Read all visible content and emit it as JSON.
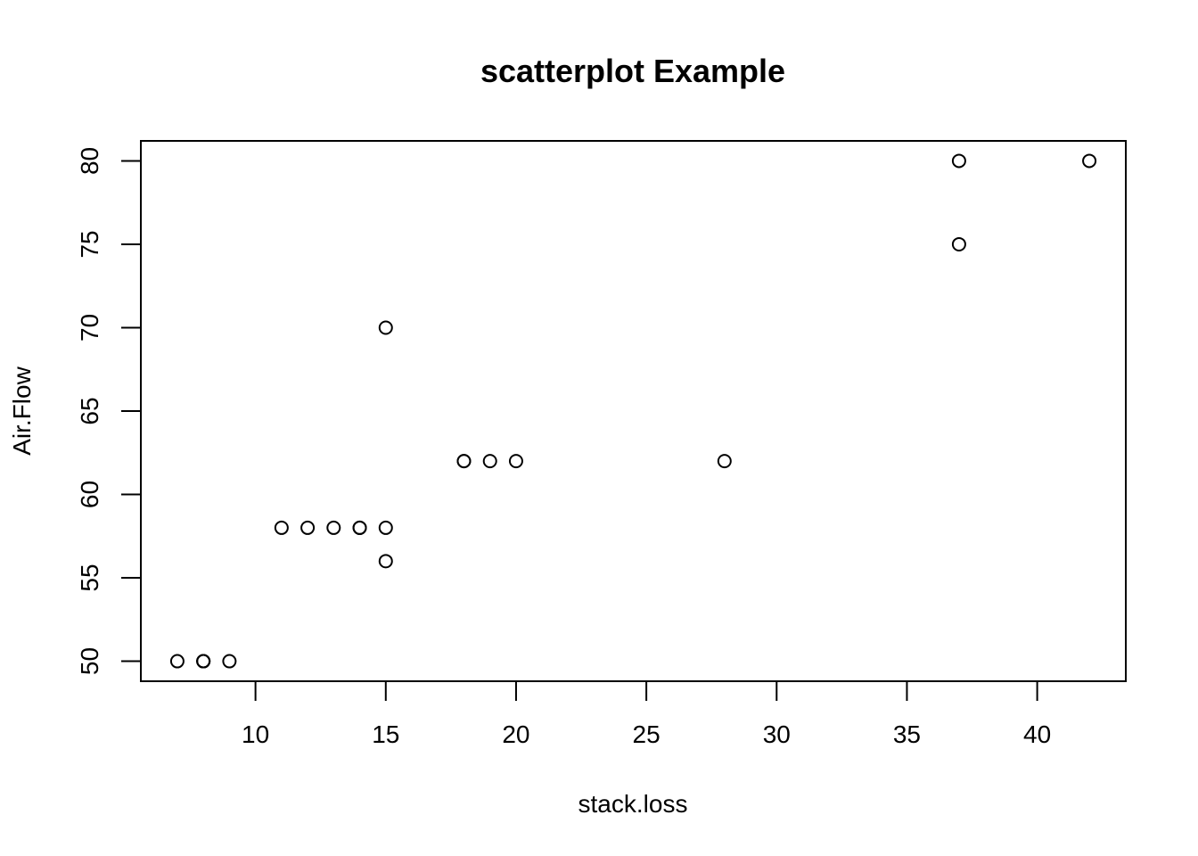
{
  "chart_data": {
    "type": "scatter",
    "title": "scatterplot Example",
    "xlabel": "stack.loss",
    "ylabel": "Air.Flow",
    "xlim": [
      5.6,
      43.4
    ],
    "ylim": [
      48.8,
      81.2
    ],
    "xticks": [
      10,
      15,
      20,
      25,
      30,
      35,
      40
    ],
    "yticks": [
      50,
      55,
      60,
      65,
      70,
      75,
      80
    ],
    "grid": false,
    "marker": "open-circle",
    "series": [
      {
        "x": [
          42,
          37,
          37,
          28,
          18,
          18,
          19,
          20,
          15,
          14,
          14,
          13,
          11,
          12,
          8,
          7,
          8,
          8,
          9,
          15,
          15
        ],
        "y": [
          80,
          80,
          75,
          62,
          62,
          62,
          62,
          62,
          58,
          58,
          58,
          58,
          58,
          58,
          50,
          50,
          50,
          50,
          50,
          56,
          70
        ]
      }
    ]
  }
}
